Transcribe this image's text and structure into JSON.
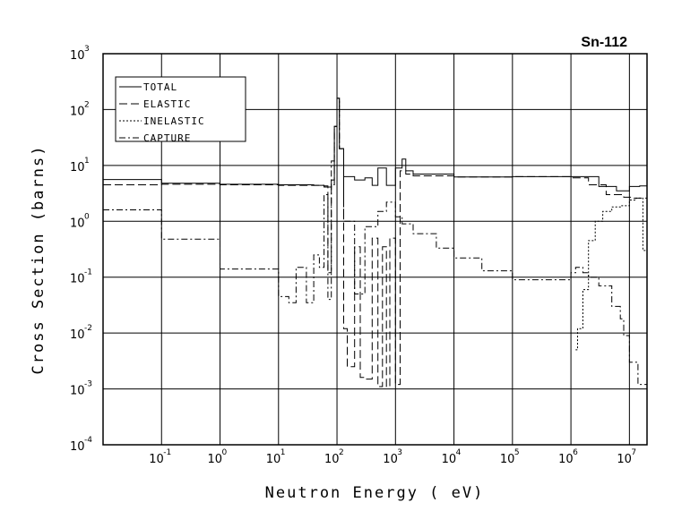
{
  "chart_data": {
    "type": "line",
    "title": "Sn-112",
    "xlabel": "Neutron Energy ( eV)",
    "ylabel": "Cross Section (barns)",
    "x_scale": "log",
    "y_scale": "log",
    "xlim": [
      0.01,
      20000000
    ],
    "ylim": [
      0.0001,
      1000
    ],
    "grid": true,
    "legend_position": "top-left",
    "x_ticks": [
      {
        "base": "10",
        "exp": "-1"
      },
      {
        "base": "10",
        "exp": "0"
      },
      {
        "base": "10",
        "exp": "1"
      },
      {
        "base": "10",
        "exp": "2"
      },
      {
        "base": "10",
        "exp": "3"
      },
      {
        "base": "10",
        "exp": "4"
      },
      {
        "base": "10",
        "exp": "5"
      },
      {
        "base": "10",
        "exp": "6"
      },
      {
        "base": "10",
        "exp": "7"
      }
    ],
    "y_ticks": [
      {
        "base": "10",
        "exp": "-4"
      },
      {
        "base": "10",
        "exp": "-3"
      },
      {
        "base": "10",
        "exp": "-2"
      },
      {
        "base": "10",
        "exp": "-1"
      },
      {
        "base": "10",
        "exp": "0"
      },
      {
        "base": "10",
        "exp": "1"
      },
      {
        "base": "10",
        "exp": "2"
      },
      {
        "base": "10",
        "exp": "3"
      }
    ],
    "series": [
      {
        "name": "TOTAL",
        "dash": "solid",
        "x": [
          0.01,
          0.1,
          1,
          10,
          20,
          40,
          60,
          80,
          90,
          100,
          110,
          130,
          200,
          300,
          400,
          500,
          700,
          1000,
          1300,
          1500,
          2000,
          10000,
          100000,
          1000000,
          3000000,
          6000000,
          10000000,
          15000000,
          20000000
        ],
        "y": [
          5.6,
          4.8,
          4.6,
          4.5,
          4.5,
          4.4,
          4.1,
          5.5,
          50,
          160,
          20,
          6.3,
          5.5,
          6,
          4.4,
          9,
          4.4,
          9,
          13,
          8,
          7,
          6.2,
          6.3,
          6.3,
          4.2,
          3.5,
          4.2,
          4.3,
          3.8
        ]
      },
      {
        "name": "ELASTIC",
        "dash": "long-dash",
        "x": [
          0.01,
          0.1,
          1,
          10,
          60,
          70,
          80,
          90,
          100,
          110,
          130,
          150,
          200,
          250,
          300,
          400,
          500,
          600,
          700,
          800,
          1000,
          1200,
          1500,
          2000,
          10000,
          100000,
          1000000,
          2000000,
          4000000,
          8000000,
          12000000,
          20000000
        ],
        "y": [
          4.5,
          4.6,
          4.5,
          4.4,
          4.3,
          0.12,
          4.5,
          50,
          160,
          20,
          0.012,
          0.0025,
          0.35,
          0.0016,
          0.0015,
          0.5,
          0.0011,
          0.35,
          0.0011,
          0.5,
          0.0012,
          8,
          7,
          6.5,
          6.2,
          6.3,
          6,
          4.5,
          3,
          2.7,
          2.6,
          2.5
        ]
      },
      {
        "name": "INELASTIC",
        "dash": "dotted",
        "x": [
          1200000,
          1300000,
          1600000,
          2000000,
          2600000,
          3500000,
          5000000,
          7000000,
          10000000,
          13000000,
          17000000,
          20000000
        ],
        "y": [
          0.005,
          0.012,
          0.06,
          0.45,
          1.0,
          1.5,
          1.8,
          1.9,
          2.4,
          2.6,
          0.3,
          0.01
        ]
      },
      {
        "name": "CAPTURE",
        "dash": "dash-dot",
        "x": [
          0.01,
          0.1,
          1,
          10,
          15,
          20,
          30,
          40,
          50,
          60,
          70,
          80,
          90,
          100,
          110,
          130,
          200,
          300,
          500,
          700,
          1000,
          1300,
          2000,
          5000,
          10000,
          30000,
          100000,
          300000,
          1000000,
          1200000,
          1600000,
          2000000,
          3000000,
          5000000,
          7000000,
          8000000,
          10000000,
          14000000,
          20000000
        ],
        "y": [
          1.6,
          0.48,
          0.14,
          0.045,
          0.035,
          0.15,
          0.035,
          0.25,
          0.15,
          3.0,
          0.04,
          12,
          50,
          160,
          20,
          1.0,
          0.05,
          0.8,
          1.5,
          2.2,
          1.2,
          0.9,
          0.6,
          0.33,
          0.22,
          0.13,
          0.09,
          0.09,
          0.12,
          0.15,
          0.12,
          0.1,
          0.07,
          0.03,
          0.018,
          0.009,
          0.003,
          0.0012,
          0.001
        ]
      }
    ]
  }
}
